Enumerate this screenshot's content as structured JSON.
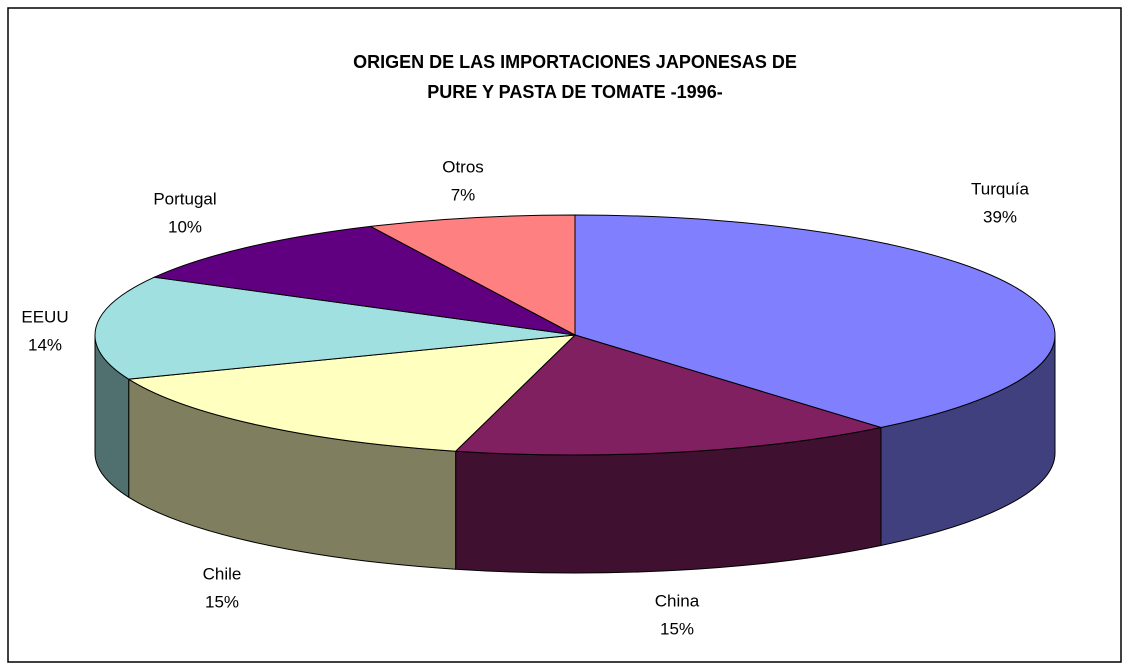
{
  "chart_data": {
    "type": "pie3d",
    "title": [
      "ORIGEN DE LAS IMPORTACIONES JAPONESAS DE",
      "PURE Y PASTA DE TOMATE -1996-"
    ],
    "categories": [
      "Turquía",
      "China",
      "Chile",
      "EEUU",
      "Portugal",
      "Otros"
    ],
    "values": [
      39,
      15,
      15,
      14,
      10,
      7
    ],
    "value_labels": [
      "39%",
      "15%",
      "15%",
      "14%",
      "10%",
      "7%"
    ],
    "colors": [
      "#8080ff",
      "#802060",
      "#ffffc0",
      "#a0e0e0",
      "#600080",
      "#ff8080"
    ]
  }
}
